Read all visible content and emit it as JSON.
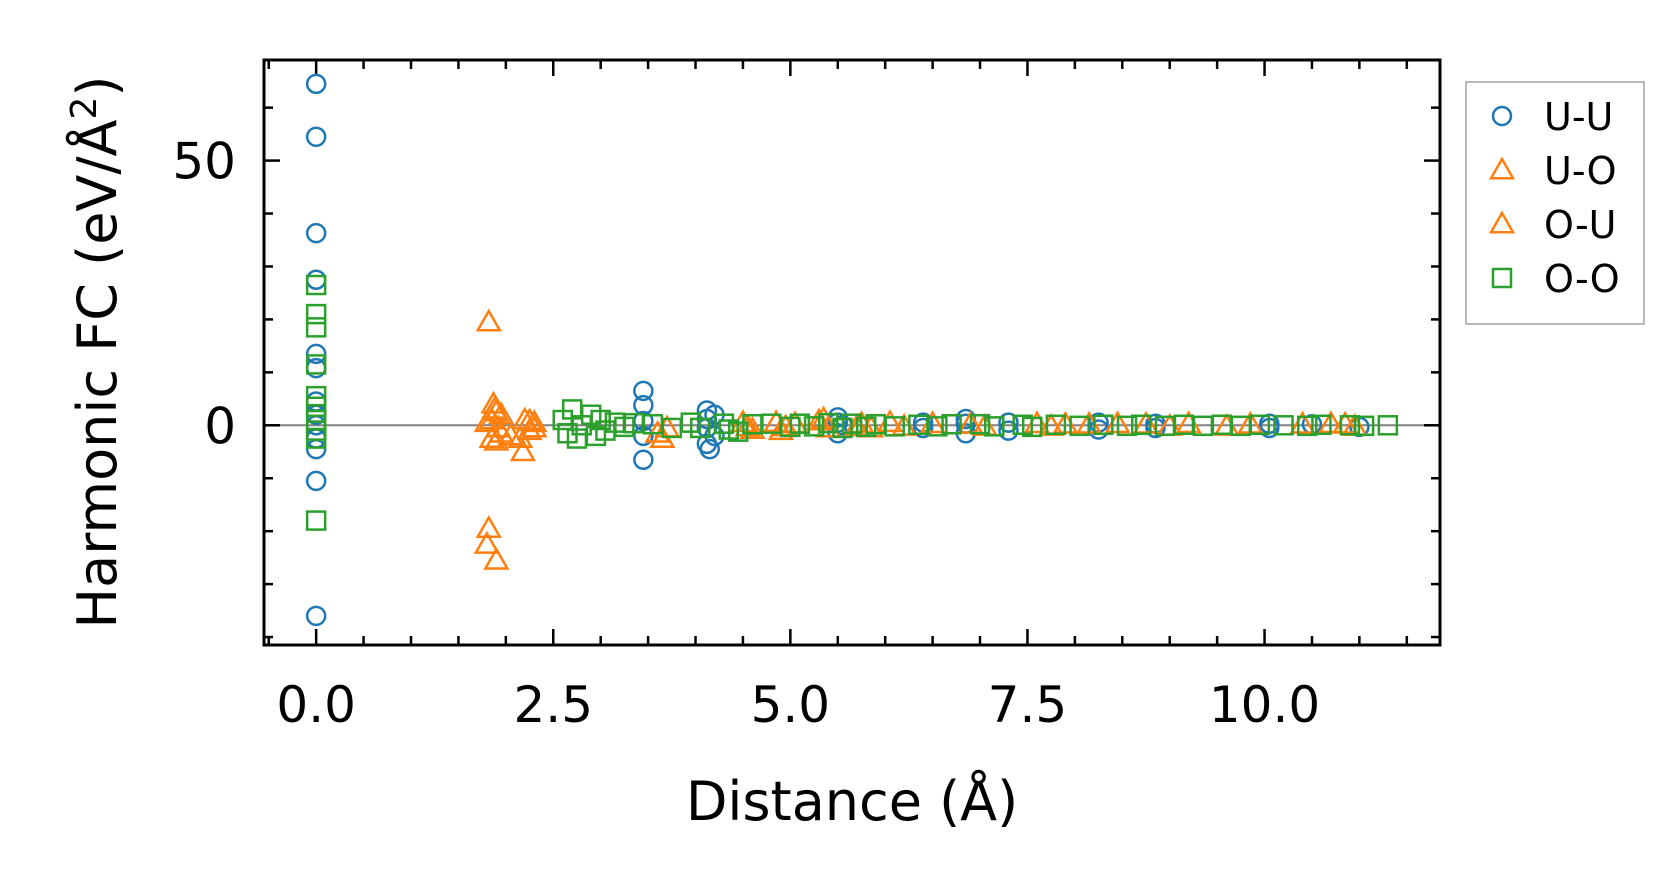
{
  "chart_data": {
    "type": "scatter",
    "title": "",
    "xlabel": "Distance (Å)",
    "ylabel_main": "Harmonic FC (eV/Å",
    "ylabel_sup": "2",
    "ylabel_close": ")",
    "xlim": [
      -0.55,
      11.85
    ],
    "ylim": [
      -41.5,
      69
    ],
    "xticks": [
      0.0,
      2.5,
      5.0,
      7.5,
      10.0
    ],
    "xtick_labels": [
      "0.0",
      "2.5",
      "5.0",
      "7.5",
      "10.0"
    ],
    "yticks": [
      0,
      50
    ],
    "ytick_labels": [
      "0",
      "50"
    ],
    "x_minor_step": 0.5,
    "y_minor_step": 10,
    "zero_line": true,
    "legend_position": "outside-right-top",
    "series": [
      {
        "name": "U-U",
        "marker": "circle",
        "color": "#1f77b4",
        "points": [
          [
            0.0,
            64.5
          ],
          [
            0.0,
            54.5
          ],
          [
            0.0,
            36.3
          ],
          [
            0.0,
            27.5
          ],
          [
            0.0,
            13.5
          ],
          [
            0.0,
            10.8
          ],
          [
            0.0,
            4.5
          ],
          [
            0.0,
            2.0
          ],
          [
            0.0,
            0.0
          ],
          [
            0.0,
            -2.5
          ],
          [
            0.0,
            -4.5
          ],
          [
            0.0,
            -10.5
          ],
          [
            0.0,
            -36.0
          ],
          [
            3.45,
            6.5
          ],
          [
            3.45,
            3.8
          ],
          [
            3.45,
            0.8
          ],
          [
            3.45,
            -2.0
          ],
          [
            3.45,
            -6.5
          ],
          [
            4.12,
            2.8
          ],
          [
            4.12,
            1.2
          ],
          [
            4.12,
            -0.5
          ],
          [
            4.12,
            -3.5
          ],
          [
            4.15,
            -4.5
          ],
          [
            4.2,
            2.0
          ],
          [
            4.2,
            -2.0
          ],
          [
            5.5,
            1.5
          ],
          [
            5.5,
            0.5
          ],
          [
            5.5,
            -1.5
          ],
          [
            5.55,
            0.0
          ],
          [
            6.4,
            0.5
          ],
          [
            6.4,
            -0.5
          ],
          [
            6.85,
            1.2
          ],
          [
            6.85,
            0.3
          ],
          [
            6.85,
            -1.5
          ],
          [
            7.3,
            0.5
          ],
          [
            7.3,
            -1.0
          ],
          [
            8.25,
            0.5
          ],
          [
            8.25,
            -0.8
          ],
          [
            8.85,
            0.3
          ],
          [
            8.85,
            -0.5
          ],
          [
            10.05,
            0.3
          ],
          [
            10.05,
            -0.5
          ],
          [
            10.5,
            0.2
          ],
          [
            11.0,
            -0.3
          ]
        ]
      },
      {
        "name": "U-O",
        "marker": "triangle",
        "color": "#ff7f0e",
        "points": [
          [
            1.82,
            19.5
          ],
          [
            1.87,
            4.0
          ],
          [
            1.9,
            2.5
          ],
          [
            1.85,
            1.0
          ],
          [
            1.92,
            -0.5
          ],
          [
            1.85,
            -2.5
          ],
          [
            1.9,
            -3.0
          ],
          [
            2.2,
            1.0
          ],
          [
            2.25,
            -1.0
          ],
          [
            2.15,
            -2.5
          ],
          [
            2.18,
            -5.0
          ],
          [
            1.82,
            -19.5
          ],
          [
            1.8,
            -22.5
          ],
          [
            1.9,
            -25.5
          ],
          [
            2.3,
            0.5
          ],
          [
            3.6,
            -1.5
          ],
          [
            3.65,
            -2.5
          ],
          [
            4.5,
            0.5
          ],
          [
            4.6,
            -0.8
          ],
          [
            4.85,
            0.5
          ],
          [
            4.9,
            -1.0
          ],
          [
            5.05,
            0.3
          ],
          [
            5.35,
            1.2
          ],
          [
            5.4,
            -0.5
          ],
          [
            5.75,
            0.3
          ],
          [
            5.85,
            -0.5
          ],
          [
            6.05,
            0.5
          ],
          [
            6.5,
            0.3
          ],
          [
            6.9,
            0.2
          ],
          [
            7.6,
            0.3
          ],
          [
            7.9,
            0.2
          ],
          [
            8.45,
            0.3
          ],
          [
            8.75,
            0.2
          ],
          [
            9.2,
            0.3
          ],
          [
            9.85,
            0.2
          ],
          [
            10.7,
            0.3
          ],
          [
            10.85,
            0.2
          ]
        ]
      },
      {
        "name": "O-U",
        "marker": "triangle",
        "color": "#ff7f0e",
        "points": [
          [
            1.88,
            3.0
          ],
          [
            1.95,
            2.0
          ],
          [
            1.8,
            0.5
          ],
          [
            1.95,
            -1.5
          ],
          [
            2.05,
            -2.0
          ],
          [
            2.3,
            -0.5
          ],
          [
            2.25,
            0.8
          ],
          [
            3.7,
            -0.5
          ],
          [
            4.55,
            -0.3
          ],
          [
            4.95,
            -0.3
          ],
          [
            5.3,
            0.8
          ],
          [
            5.7,
            -0.3
          ],
          [
            6.2,
            -0.2
          ],
          [
            7.05,
            -0.2
          ],
          [
            7.75,
            -0.2
          ],
          [
            8.15,
            0.2
          ],
          [
            9.0,
            -0.2
          ],
          [
            9.6,
            -0.2
          ],
          [
            10.4,
            0.2
          ],
          [
            10.95,
            -0.2
          ]
        ]
      },
      {
        "name": "O-O",
        "marker": "square",
        "color": "#2ca02c",
        "points": [
          [
            0.0,
            26.5
          ],
          [
            0.0,
            21.0
          ],
          [
            0.0,
            18.5
          ],
          [
            0.0,
            11.5
          ],
          [
            0.0,
            5.5
          ],
          [
            0.0,
            3.5
          ],
          [
            0.0,
            1.0
          ],
          [
            0.0,
            -1.0
          ],
          [
            0.0,
            -2.5
          ],
          [
            0.0,
            -18.0
          ],
          [
            2.6,
            1.0
          ],
          [
            2.65,
            -1.5
          ],
          [
            2.7,
            3.0
          ],
          [
            2.75,
            -2.5
          ],
          [
            2.8,
            0.0
          ],
          [
            2.9,
            2.0
          ],
          [
            2.95,
            -2.0
          ],
          [
            3.0,
            1.0
          ],
          [
            3.05,
            -1.0
          ],
          [
            3.15,
            0.5
          ],
          [
            3.25,
            -0.3
          ],
          [
            3.35,
            0.4
          ],
          [
            3.55,
            0.2
          ],
          [
            3.75,
            -0.5
          ],
          [
            3.95,
            0.5
          ],
          [
            4.05,
            -0.5
          ],
          [
            4.3,
            0.3
          ],
          [
            4.35,
            -0.8
          ],
          [
            4.45,
            -1.2
          ],
          [
            4.6,
            0.2
          ],
          [
            4.8,
            0.3
          ],
          [
            5.0,
            -0.3
          ],
          [
            5.1,
            0.3
          ],
          [
            5.25,
            -0.2
          ],
          [
            5.4,
            0.4
          ],
          [
            5.55,
            -0.5
          ],
          [
            5.65,
            0.3
          ],
          [
            5.8,
            -0.3
          ],
          [
            5.9,
            0.2
          ],
          [
            6.1,
            -0.2
          ],
          [
            6.35,
            0.1
          ],
          [
            6.55,
            -0.2
          ],
          [
            6.7,
            0.2
          ],
          [
            7.0,
            0.2
          ],
          [
            7.15,
            -0.2
          ],
          [
            7.45,
            0.1
          ],
          [
            7.55,
            -0.3
          ],
          [
            7.8,
            0.1
          ],
          [
            8.05,
            -0.1
          ],
          [
            8.3,
            0.1
          ],
          [
            8.55,
            -0.1
          ],
          [
            8.7,
            0.1
          ],
          [
            8.95,
            -0.1
          ],
          [
            9.15,
            0.1
          ],
          [
            9.35,
            -0.1
          ],
          [
            9.55,
            0.1
          ],
          [
            9.75,
            -0.1
          ],
          [
            9.95,
            0.1
          ],
          [
            10.2,
            0.0
          ],
          [
            10.45,
            -0.1
          ],
          [
            10.6,
            0.1
          ],
          [
            10.9,
            0.0
          ],
          [
            11.05,
            -0.1
          ],
          [
            11.3,
            0.0
          ]
        ]
      }
    ]
  }
}
